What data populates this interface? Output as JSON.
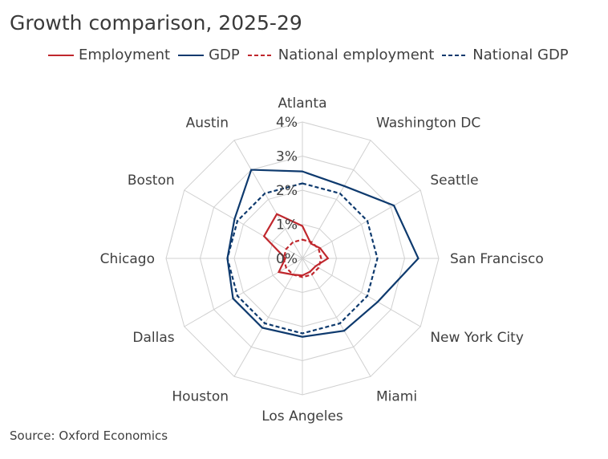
{
  "chart_data": {
    "type": "radar",
    "title": "Growth comparison, 2025-29",
    "source": "Source: Oxford Economics",
    "categories": [
      "Atlanta",
      "Washington DC",
      "Seattle",
      "San Francisco",
      "New York City",
      "Miami",
      "Los Angeles",
      "Houston",
      "Dallas",
      "Chicago",
      "Boston",
      "Austin"
    ],
    "r_ticks": [
      0,
      1,
      2,
      3,
      4
    ],
    "r_tick_labels": [
      "0%",
      "1%",
      "2%",
      "3%",
      "4%"
    ],
    "rlim": [
      0,
      4
    ],
    "series": [
      {
        "name": "Employment",
        "color": "#c0272d",
        "dash": "solid",
        "values": [
          0.95,
          0.5,
          0.6,
          0.75,
          0.45,
          0.45,
          0.5,
          0.55,
          0.8,
          0.5,
          1.3,
          1.5
        ]
      },
      {
        "name": "GDP",
        "color": "#0e3a6e",
        "dash": "solid",
        "values": [
          2.55,
          2.45,
          3.1,
          3.4,
          2.55,
          2.45,
          2.3,
          2.35,
          2.35,
          2.2,
          2.3,
          3.0
        ]
      },
      {
        "name": "National employment",
        "color": "#c0272d",
        "dash": "dashed",
        "values": [
          0.55,
          0.55,
          0.55,
          0.55,
          0.55,
          0.55,
          0.55,
          0.55,
          0.55,
          0.55,
          0.55,
          0.55
        ]
      },
      {
        "name": "National GDP",
        "color": "#0e3a6e",
        "dash": "dashed",
        "values": [
          2.2,
          2.2,
          2.2,
          2.2,
          2.2,
          2.2,
          2.2,
          2.2,
          2.2,
          2.2,
          2.2,
          2.2
        ]
      }
    ],
    "grid": true,
    "legend_position": "top"
  }
}
